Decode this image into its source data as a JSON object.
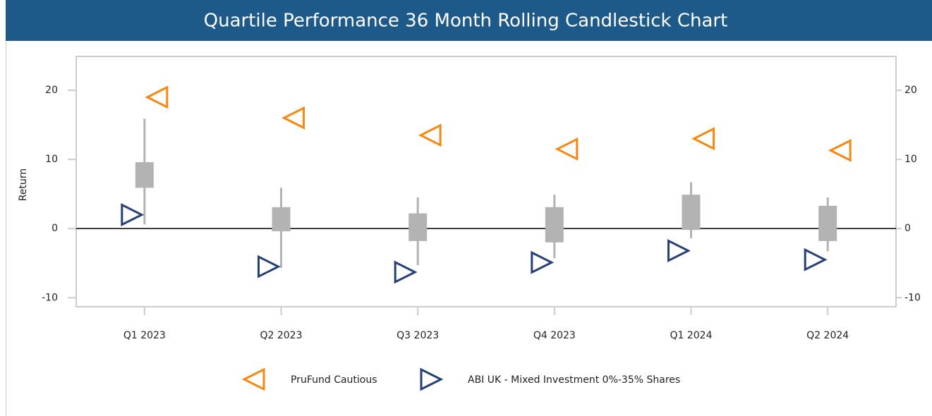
{
  "chart_data": {
    "type": "candlestick",
    "title": "Quartile Performance 36 Month Rolling Candlestick Chart",
    "ylabel": "Return",
    "categories": [
      "Q1 2023",
      "Q2 2023",
      "Q3 2023",
      "Q4 2023",
      "Q1 2024",
      "Q2 2024"
    ],
    "candles": {
      "color": "#b3b3b3",
      "max": [
        15.9,
        5.9,
        4.5,
        4.9,
        6.7,
        4.5
      ],
      "upper_quartile": [
        9.6,
        3.1,
        2.2,
        3.1,
        4.9,
        3.3
      ],
      "lower_quartile": [
        5.9,
        -0.4,
        -1.8,
        -2.0,
        -0.2,
        -1.8
      ],
      "min": [
        0.6,
        -5.7,
        -5.3,
        -4.3,
        -1.4,
        -3.3
      ]
    },
    "series": [
      {
        "name": "PruFund Cautious",
        "color": "#f7870f",
        "marker": "triangle-left",
        "values": [
          19.0,
          16.0,
          13.5,
          11.5,
          13.0,
          11.3
        ]
      },
      {
        "name": "ABI UK - Mixed Investment 0%-35% Shares",
        "color": "#253f78",
        "marker": "triangle-right",
        "values": [
          2.0,
          -5.5,
          -6.3,
          -4.9,
          -3.2,
          -4.5
        ]
      }
    ],
    "ylim": [
      -11.3,
      24.9
    ],
    "yticks": [
      -10,
      0,
      10,
      20
    ],
    "y2lim": [
      -11.3,
      24.9
    ],
    "y2ticks": [
      -10,
      0,
      10,
      20
    ],
    "legend": "bottom"
  }
}
